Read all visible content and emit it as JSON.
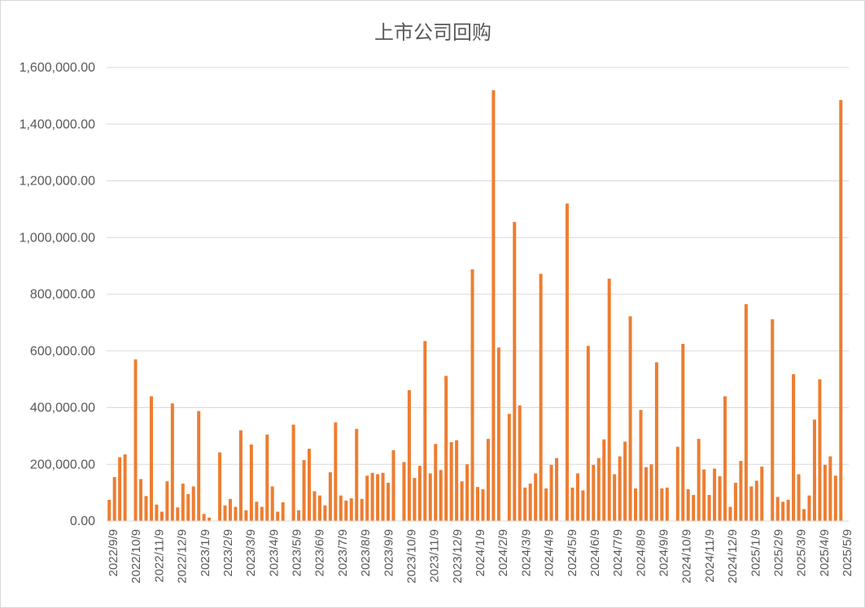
{
  "chart_data": {
    "type": "bar",
    "title": "上市公司回购",
    "xlabel": "",
    "ylabel": "",
    "ylim": [
      0,
      1600000
    ],
    "y_ticks": [
      "0.00",
      "200,000.00",
      "400,000.00",
      "600,000.00",
      "800,000.00",
      "1,000,000.00",
      "1,200,000.00",
      "1,400,000.00",
      "1,600,000.00"
    ],
    "x_tick_labels": [
      "2022/9/9",
      "2022/10/9",
      "2022/11/9",
      "2022/12/9",
      "2023/1/9",
      "2023/2/9",
      "2023/3/9",
      "2023/4/9",
      "2023/5/9",
      "2023/6/9",
      "2023/7/9",
      "2023/8/9",
      "2023/9/9",
      "2023/10/9",
      "2023/11/9",
      "2023/12/9",
      "2024/1/9",
      "2024/2/9",
      "2024/3/9",
      "2024/4/9",
      "2024/5/9",
      "2024/6/9",
      "2024/7/9",
      "2024/8/9",
      "2024/9/9",
      "2024/10/9",
      "2024/11/9",
      "2024/12/9",
      "2025/1/9",
      "2025/2/9",
      "2025/3/9",
      "2025/4/9",
      "2025/5/9"
    ],
    "grid": true,
    "legend": "none",
    "bar_color": "#ED7D31",
    "series": [
      {
        "values": [
          [
            0,
            75000
          ],
          [
            1,
            155000
          ],
          [
            2,
            225000
          ],
          [
            3,
            235000
          ],
          [
            5,
            570000
          ],
          [
            6,
            148000
          ],
          [
            7,
            88000
          ],
          [
            8,
            440000
          ],
          [
            9,
            58000
          ],
          [
            10,
            33000
          ],
          [
            11,
            140000
          ],
          [
            12,
            415000
          ],
          [
            13,
            48000
          ],
          [
            14,
            132000
          ],
          [
            15,
            95000
          ],
          [
            16,
            122000
          ],
          [
            17,
            388000
          ],
          [
            18,
            25000
          ],
          [
            19,
            12000
          ],
          [
            21,
            242000
          ],
          [
            22,
            55000
          ],
          [
            23,
            78000
          ],
          [
            24,
            50000
          ],
          [
            25,
            320000
          ],
          [
            26,
            38000
          ],
          [
            27,
            270000
          ],
          [
            28,
            68000
          ],
          [
            29,
            50000
          ],
          [
            30,
            305000
          ],
          [
            31,
            122000
          ],
          [
            32,
            33000
          ],
          [
            33,
            66000
          ],
          [
            35,
            340000
          ],
          [
            36,
            38000
          ],
          [
            37,
            215000
          ],
          [
            38,
            255000
          ],
          [
            39,
            105000
          ],
          [
            40,
            90000
          ],
          [
            41,
            55000
          ],
          [
            42,
            172000
          ],
          [
            43,
            348000
          ],
          [
            44,
            90000
          ],
          [
            45,
            72000
          ],
          [
            46,
            80000
          ],
          [
            47,
            325000
          ],
          [
            48,
            78000
          ],
          [
            49,
            160000
          ],
          [
            50,
            170000
          ],
          [
            51,
            165000
          ],
          [
            52,
            170000
          ],
          [
            53,
            135000
          ],
          [
            54,
            250000
          ],
          [
            56,
            208000
          ],
          [
            57,
            462000
          ],
          [
            58,
            152000
          ],
          [
            59,
            195000
          ],
          [
            60,
            635000
          ],
          [
            61,
            168000
          ],
          [
            62,
            272000
          ],
          [
            63,
            180000
          ],
          [
            64,
            512000
          ],
          [
            65,
            278000
          ],
          [
            66,
            285000
          ],
          [
            67,
            140000
          ],
          [
            68,
            200000
          ],
          [
            69,
            888000
          ],
          [
            70,
            120000
          ],
          [
            71,
            112000
          ],
          [
            72,
            290000
          ],
          [
            73,
            1520000
          ],
          [
            74,
            612000
          ],
          [
            76,
            378000
          ],
          [
            77,
            1055000
          ],
          [
            78,
            408000
          ],
          [
            79,
            118000
          ],
          [
            80,
            132000
          ],
          [
            81,
            168000
          ],
          [
            82,
            872000
          ],
          [
            83,
            115000
          ],
          [
            84,
            198000
          ],
          [
            85,
            222000
          ],
          [
            87,
            1120000
          ],
          [
            88,
            118000
          ],
          [
            89,
            168000
          ],
          [
            90,
            108000
          ],
          [
            91,
            618000
          ],
          [
            92,
            198000
          ],
          [
            93,
            222000
          ],
          [
            94,
            288000
          ],
          [
            95,
            855000
          ],
          [
            96,
            165000
          ],
          [
            97,
            228000
          ],
          [
            98,
            280000
          ],
          [
            99,
            722000
          ],
          [
            100,
            115000
          ],
          [
            101,
            392000
          ],
          [
            102,
            190000
          ],
          [
            103,
            200000
          ],
          [
            104,
            560000
          ],
          [
            105,
            115000
          ],
          [
            106,
            118000
          ],
          [
            108,
            262000
          ],
          [
            109,
            625000
          ],
          [
            110,
            112000
          ],
          [
            111,
            92000
          ],
          [
            112,
            290000
          ],
          [
            113,
            182000
          ],
          [
            114,
            92000
          ],
          [
            115,
            185000
          ],
          [
            116,
            158000
          ],
          [
            117,
            440000
          ],
          [
            118,
            50000
          ],
          [
            119,
            135000
          ],
          [
            120,
            212000
          ],
          [
            121,
            765000
          ],
          [
            122,
            122000
          ],
          [
            123,
            142000
          ],
          [
            124,
            192000
          ],
          [
            126,
            712000
          ],
          [
            127,
            85000
          ],
          [
            128,
            68000
          ],
          [
            129,
            75000
          ],
          [
            130,
            518000
          ],
          [
            131,
            165000
          ],
          [
            132,
            42000
          ],
          [
            133,
            90000
          ],
          [
            134,
            358000
          ],
          [
            135,
            500000
          ],
          [
            136,
            198000
          ],
          [
            137,
            228000
          ],
          [
            138,
            160000
          ],
          [
            139,
            1485000
          ]
        ]
      }
    ]
  }
}
